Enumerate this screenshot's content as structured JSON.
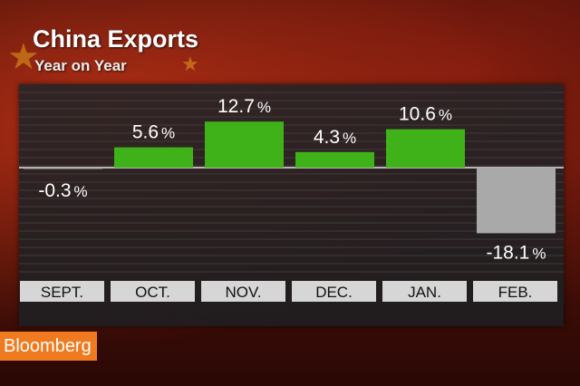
{
  "colors": {
    "positive": "#3fb21a",
    "negative": "#a9a9a9",
    "logo_bg": "#f07a1f",
    "star": "#e5a11d"
  },
  "brand": {
    "logo_text": "Bloomberg"
  },
  "chart_data": {
    "type": "bar",
    "title": "China Exports",
    "subtitle": "Year on Year",
    "categories": [
      "SEPT.",
      "OCT.",
      "NOV.",
      "DEC.",
      "JAN.",
      "FEB."
    ],
    "values": [
      -0.3,
      5.6,
      12.7,
      4.3,
      10.6,
      -18.1
    ],
    "labels": [
      "-0.3",
      "5.6",
      "12.7",
      "4.3",
      "10.6",
      "-18.1"
    ],
    "unit": "%",
    "ylim": [
      -20,
      16
    ],
    "grid": true
  }
}
